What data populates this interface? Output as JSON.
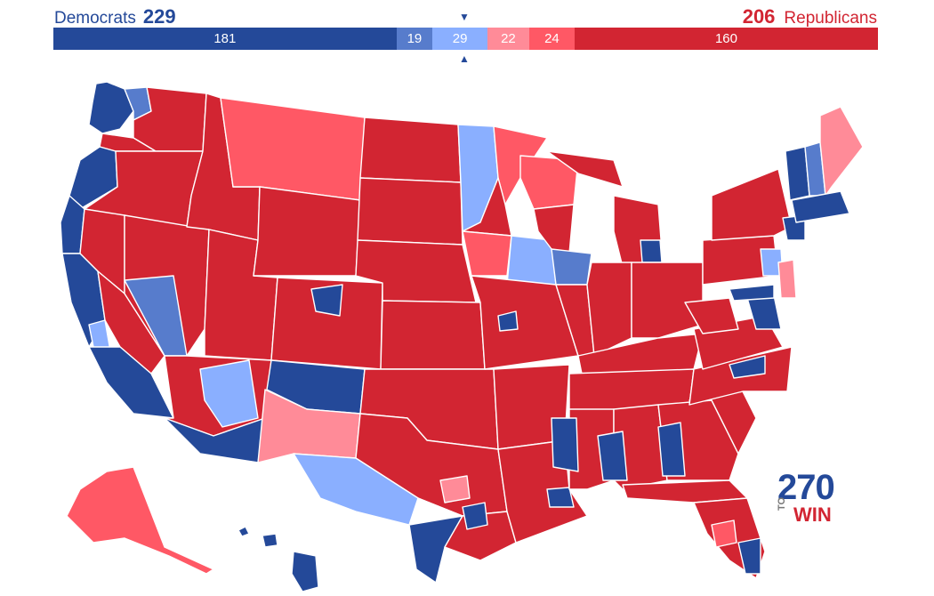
{
  "header": {
    "dem_name": "Democrats",
    "dem_total": "229",
    "rep_total": "206",
    "rep_name": "Republicans",
    "marker_top": "▼",
    "marker_bottom": "▲"
  },
  "tally": [
    {
      "label": "181",
      "value": 181,
      "color": "#244999"
    },
    {
      "label": "19",
      "value": 19,
      "color": "#577ccc"
    },
    {
      "label": "29",
      "value": 29,
      "color": "#8aafff"
    },
    {
      "label": "22",
      "value": 22,
      "color": "#ff8b98"
    },
    {
      "label": "24",
      "value": 24,
      "color": "#ff5865"
    },
    {
      "label": "160",
      "value": 160,
      "color": "#d22532"
    }
  ],
  "colors": {
    "safe_dem": "#244999",
    "likely_dem": "#577ccc",
    "lean_dem": "#8aafff",
    "lean_rep": "#ff8b98",
    "likely_rep": "#ff5865",
    "safe_rep": "#d22532",
    "border": "#ffffff"
  },
  "logo": {
    "number": "270",
    "to": "TO",
    "win": "WIN"
  }
}
